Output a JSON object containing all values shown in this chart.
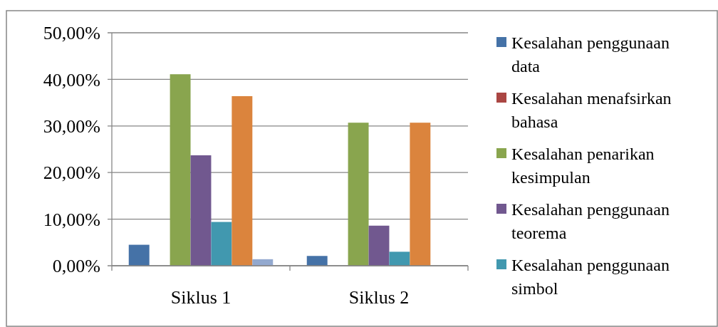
{
  "chart_data": {
    "type": "bar",
    "categories": [
      "Siklus 1",
      "Siklus 2"
    ],
    "series": [
      {
        "name": "Kesalahan penggunaan data",
        "color": "#4572a7",
        "values": [
          4.5,
          2.1
        ]
      },
      {
        "name": "Kesalahan menafsirkan bahasa",
        "color": "#aa4643",
        "values": [
          0,
          0
        ]
      },
      {
        "name": "Kesalahan penarikan kesimpulan",
        "color": "#89a54e",
        "values": [
          41.1,
          30.7
        ]
      },
      {
        "name": "Kesalahan penggunaan teorema",
        "color": "#71588f",
        "values": [
          23.7,
          8.6
        ]
      },
      {
        "name": "Kesalahan penggunaan simbol",
        "color": "#4198af",
        "values": [
          9.4,
          3.0
        ]
      },
      {
        "color": "#db843d",
        "values": [
          36.4,
          30.7
        ]
      },
      {
        "color": "#93a9cf",
        "values": [
          1.4,
          0
        ]
      }
    ],
    "ylim": [
      0,
      50
    ],
    "yticks": [
      {
        "value": 0,
        "label": "0,00%"
      },
      {
        "value": 10,
        "label": "10,00%"
      },
      {
        "value": 20,
        "label": "20,00%"
      },
      {
        "value": 30,
        "label": "30,00%"
      },
      {
        "value": 40,
        "label": "40,00%"
      },
      {
        "value": 50,
        "label": "50,00%"
      }
    ],
    "grid": "y",
    "legend": "right"
  }
}
